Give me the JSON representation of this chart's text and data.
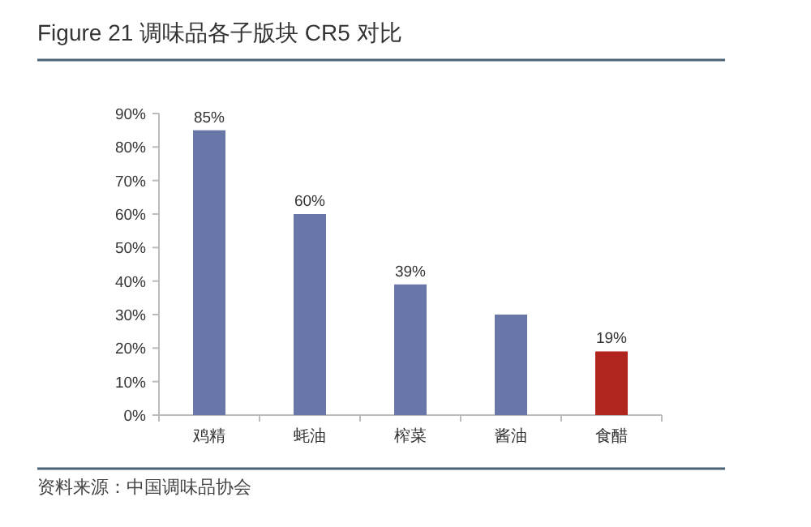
{
  "chart_data": {
    "type": "bar",
    "title": "Figure 21  调味品各子版块 CR5 对比",
    "categories": [
      "鸡精",
      "蚝油",
      "榨菜",
      "酱油",
      "食醋"
    ],
    "values": [
      85,
      60,
      39,
      30,
      19
    ],
    "colors": [
      "#6877a8",
      "#6877a8",
      "#6877a8",
      "#6877a8",
      "#b0261e"
    ],
    "value_labels": [
      "85%",
      "60%",
      "39%",
      null,
      "19%"
    ],
    "ylim": [
      0,
      90
    ],
    "yticks": [
      {
        "value": 0,
        "label": "0%"
      },
      {
        "value": 10,
        "label": "10%"
      },
      {
        "value": 20,
        "label": "20%"
      },
      {
        "value": 30,
        "label": "30%"
      },
      {
        "value": 40,
        "label": "40%"
      },
      {
        "value": 50,
        "label": "50%"
      },
      {
        "value": 60,
        "label": "60%"
      },
      {
        "value": 70,
        "label": "70%"
      },
      {
        "value": 80,
        "label": "80%"
      },
      {
        "value": 90,
        "label": "90%"
      }
    ],
    "grid": false,
    "annotations": [
      "资料来源：中国调味品协会"
    ]
  }
}
